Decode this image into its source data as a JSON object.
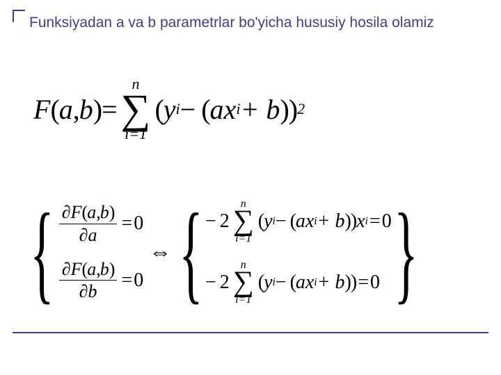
{
  "title": "Funksiyadan a va b parametrlar bo'yicha hususiy hosila olamiz",
  "mainEquation": {
    "lhs_func": "F",
    "lhs_open": "(",
    "lhs_a": "a",
    "lhs_comma": ",",
    "lhs_b": "b",
    "lhs_close": ")",
    "equals": " = ",
    "sum_top": "n",
    "sum_bottom": "i=1",
    "body_open": "(",
    "yi_y": "y",
    "yi_i": "i",
    "minus": " − (",
    "ax_a": "ax",
    "ax_i": "i",
    "plus_b": " + b",
    "body_close": "))",
    "exp": "2"
  },
  "leftSystem": {
    "row1": {
      "num_partial": "∂",
      "num_F": "F",
      "num_open": "(",
      "num_a": "a",
      "num_comma": ",",
      "num_b": "b",
      "num_close": ")",
      "den_partial": "∂",
      "den_var": "a",
      "equals": " = ",
      "zero": "0"
    },
    "row2": {
      "num_partial": "∂",
      "num_F": "F",
      "num_open": "(",
      "num_a": "a",
      "num_comma": ",",
      "num_b": "b",
      "num_close": ")",
      "den_partial": "∂",
      "den_var": "b",
      "equals": " = ",
      "zero": "0"
    }
  },
  "equiv": "⇔",
  "rightSystem": {
    "row1": {
      "neg2": "− 2",
      "sum_top": "n",
      "sum_bottom": "i=1",
      "open": "(",
      "yi_y": "y",
      "yi_i": "i",
      "minus": " − (",
      "ax_a": "ax",
      "ax_i": "i",
      "plus_b": " + b",
      "close1": "))",
      "x": "x",
      "x_i": "i",
      "equals": " = ",
      "zero": "0"
    },
    "row2": {
      "neg2": "− 2",
      "sum_top": "n",
      "sum_bottom": "i=1",
      "open": "(",
      "yi_y": "y",
      "yi_i": "i",
      "minus": " − (",
      "ax_a": "ax",
      "ax_i": "i",
      "plus_b": " + b",
      "close": "))",
      "equals": " = ",
      "zero": "0"
    }
  },
  "style": {
    "accent_color": "#404080",
    "background_color": "#ffffff",
    "title_fontsize": 21,
    "main_eq_fontsize": 40,
    "system_fontsize": 28,
    "font_family_title": "Arial",
    "font_family_math": "Times New Roman"
  }
}
